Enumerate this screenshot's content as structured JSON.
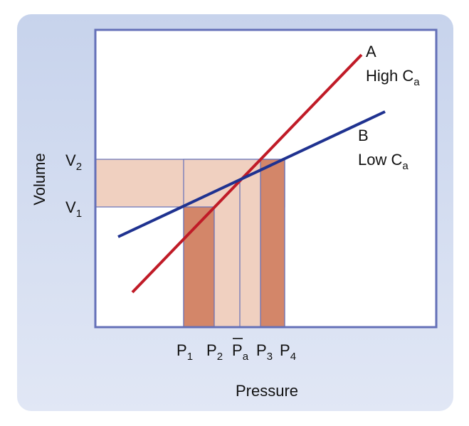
{
  "colors": {
    "panel_bg": "#d3dcef",
    "plot_frame": "#6470b8",
    "light_band": "#f0d0c0",
    "dark_band": "#d38669",
    "curve_a": "#c01b27",
    "curve_b": "#1f3290"
  },
  "axes": {
    "x_label": "Pressure",
    "y_label": "Volume"
  },
  "y_ticks": [
    {
      "base": "V",
      "sub": "2"
    },
    {
      "base": "V",
      "sub": "1"
    }
  ],
  "x_ticks": [
    {
      "base": "P",
      "sub": "1",
      "bar": false
    },
    {
      "base": "P",
      "sub": "2",
      "bar": false
    },
    {
      "base": "P",
      "sub": "a",
      "bar": true
    },
    {
      "base": "P",
      "sub": "3",
      "bar": false
    },
    {
      "base": "P",
      "sub": "4",
      "bar": false
    }
  ],
  "curves": {
    "a": {
      "letter": "A",
      "text": "High C",
      "sub": "a"
    },
    "b": {
      "letter": "B",
      "text": "Low C",
      "sub": "a"
    }
  }
}
